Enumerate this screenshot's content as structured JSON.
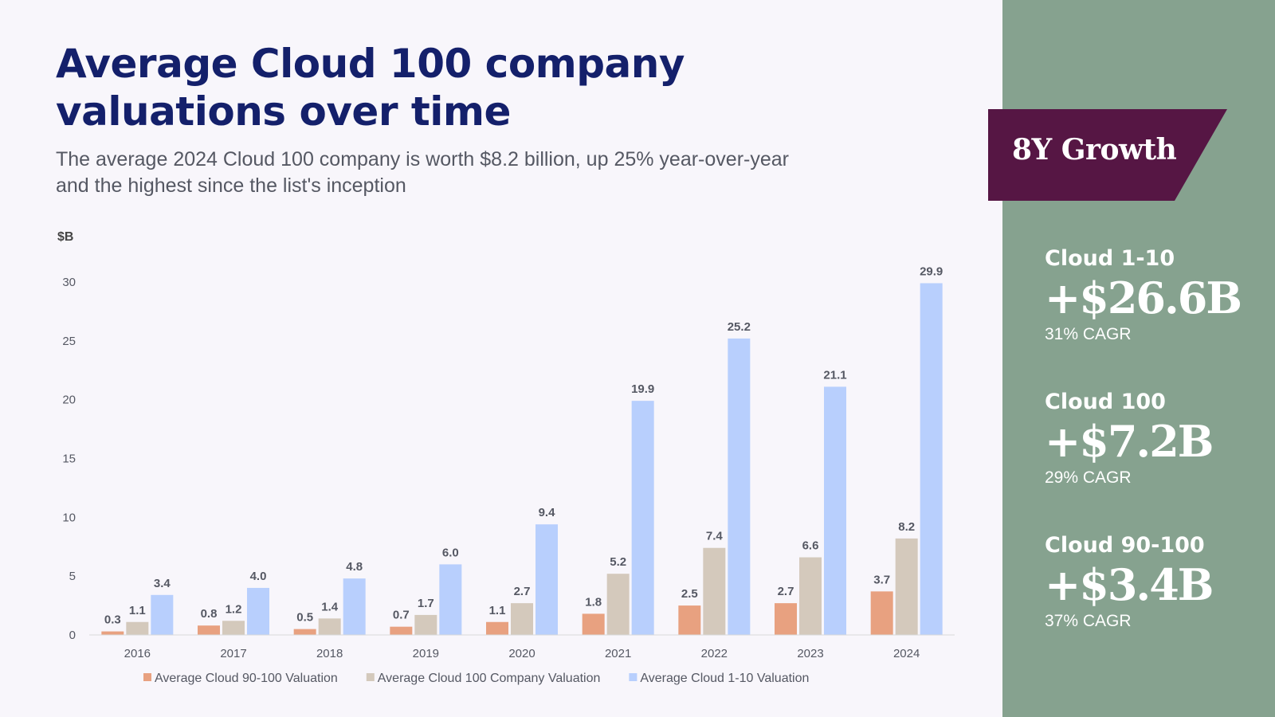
{
  "header": {
    "title_lines": [
      "Average Cloud 100 company",
      "valuations over time"
    ],
    "subtitle_lines": [
      "The average 2024 Cloud 100 company is worth $8.2 billion, up 25% year-over-year",
      "and the highest since the list's inception"
    ]
  },
  "chart_data": {
    "type": "bar",
    "title": "Average Cloud 100 company valuations over time",
    "ylabel": "$B",
    "ylim": [
      0,
      30
    ],
    "yticks": [
      0,
      5,
      10,
      15,
      20,
      25,
      30
    ],
    "grid": false,
    "legend_position": "bottom",
    "categories": [
      "2016",
      "2017",
      "2018",
      "2019",
      "2020",
      "2021",
      "2022",
      "2023",
      "2024"
    ],
    "series": [
      {
        "name": "Average Cloud 90-100 Valuation",
        "color": "#e8a180",
        "values": [
          0.3,
          0.8,
          0.5,
          0.7,
          1.1,
          1.8,
          2.5,
          2.7,
          3.7
        ]
      },
      {
        "name": "Average Cloud 100 Company Valuation",
        "color": "#d4c9bc",
        "values": [
          1.1,
          1.2,
          1.4,
          1.7,
          2.7,
          5.2,
          7.4,
          6.6,
          8.2
        ]
      },
      {
        "name": "Average Cloud 1-10 Valuation",
        "color": "#b8cffd",
        "values": [
          3.4,
          4.0,
          4.8,
          6.0,
          9.4,
          19.9,
          25.2,
          21.1,
          29.9
        ]
      }
    ]
  },
  "sidebar": {
    "banner": "8Y Growth",
    "banner_color": "#561644",
    "background_color": "#86a28f",
    "stats": [
      {
        "label": "Cloud 1-10",
        "value": "+$26.6B",
        "sub": "31% CAGR"
      },
      {
        "label": "Cloud 100",
        "value": "+$7.2B",
        "sub": "29% CAGR"
      },
      {
        "label": "Cloud 90-100",
        "value": "+$3.4B",
        "sub": "37% CAGR"
      }
    ]
  }
}
